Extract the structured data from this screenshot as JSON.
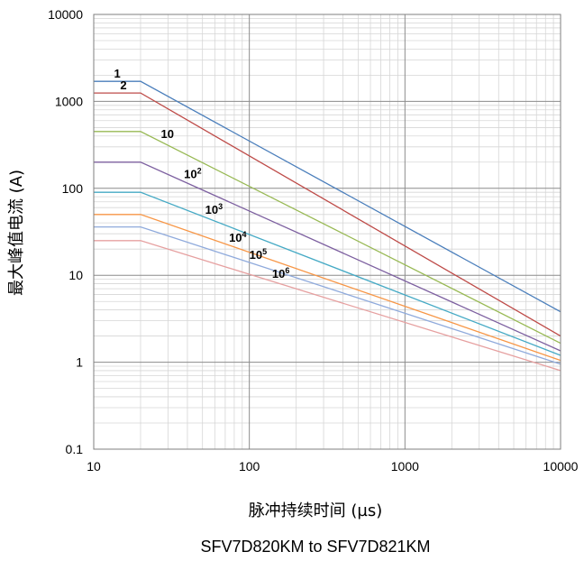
{
  "chart_data": {
    "type": "line",
    "x_scale": "log",
    "y_scale": "log",
    "xlim": [
      10,
      10000
    ],
    "ylim": [
      0.1,
      10000
    ],
    "xlabel": "脉冲持续时间 (µs)",
    "ylabel": "最大峰值电流 (A)",
    "subtitle": "SFV7D820KM to SFV7D821KM",
    "grid": true,
    "x_ticks": [
      "10",
      "100",
      "1000",
      "10000"
    ],
    "y_ticks": [
      "0.1",
      "1",
      "10",
      "100",
      "1000",
      "10000"
    ],
    "series": [
      {
        "name": "1",
        "label": {
          "base": "1",
          "exp": ""
        },
        "color": "#4a7ebb",
        "points": [
          [
            10,
            1700
          ],
          [
            20,
            1700
          ],
          [
            10000,
            3.8
          ]
        ]
      },
      {
        "name": "2",
        "label": {
          "base": "2",
          "exp": ""
        },
        "color": "#be4b48",
        "points": [
          [
            10,
            1250
          ],
          [
            20,
            1250
          ],
          [
            10000,
            2.0
          ]
        ]
      },
      {
        "name": "10",
        "label": {
          "base": "10",
          "exp": ""
        },
        "color": "#98b954",
        "points": [
          [
            10,
            450
          ],
          [
            20,
            450
          ],
          [
            10000,
            1.65
          ]
        ]
      },
      {
        "name": "10^2",
        "label": {
          "base": "10",
          "exp": "2"
        },
        "color": "#7d60a0",
        "points": [
          [
            10,
            200
          ],
          [
            20,
            200
          ],
          [
            10000,
            1.35
          ]
        ]
      },
      {
        "name": "10^3",
        "label": {
          "base": "10",
          "exp": "3"
        },
        "color": "#46aac5",
        "points": [
          [
            10,
            90
          ],
          [
            20,
            90
          ],
          [
            10000,
            1.2
          ]
        ]
      },
      {
        "name": "10^4",
        "label": {
          "base": "10",
          "exp": "4"
        },
        "color": "#f79646",
        "points": [
          [
            10,
            50
          ],
          [
            20,
            50
          ],
          [
            10000,
            1.05
          ]
        ]
      },
      {
        "name": "10^5",
        "label": {
          "base": "10",
          "exp": "5"
        },
        "color": "#8faadc",
        "points": [
          [
            10,
            36
          ],
          [
            20,
            36
          ],
          [
            10000,
            0.95
          ]
        ]
      },
      {
        "name": "10^6",
        "label": {
          "base": "10",
          "exp": "6"
        },
        "color": "#e6a0a0",
        "points": [
          [
            10,
            25
          ],
          [
            20,
            25
          ],
          [
            10000,
            0.8
          ]
        ]
      }
    ]
  }
}
